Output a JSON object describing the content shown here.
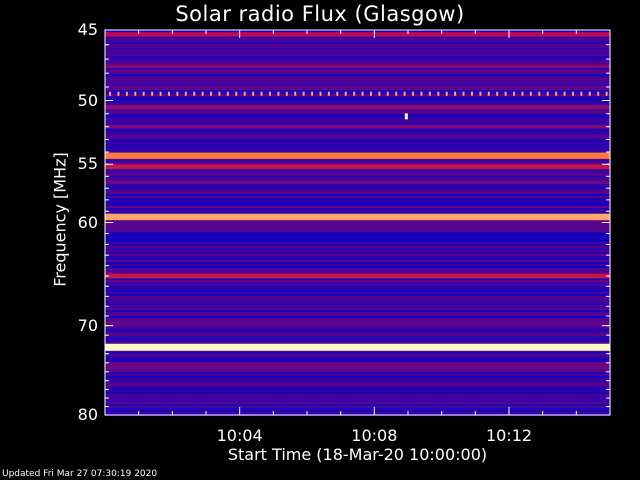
{
  "page": {
    "title": "Solar radio Flux (Glasgow)",
    "footer": "Updated Fri Mar 27 07:30:19 2020"
  },
  "chart_data": {
    "type": "heatmap",
    "title": "Solar radio Flux (Glasgow)",
    "xlabel": "Start Time (18-Mar-20 10:00:00)",
    "ylabel": "Frequency [MHz]",
    "x_unit": "minutes after 10:00:00",
    "xlim": [
      0,
      15
    ],
    "ylim": [
      45,
      80
    ],
    "y_inverted": true,
    "y_scale": "log",
    "xticks": [
      {
        "value": 4,
        "label": "10:04"
      },
      {
        "value": 8,
        "label": "10:08"
      },
      {
        "value": 12,
        "label": "10:12"
      }
    ],
    "yticks": [
      {
        "value": 45,
        "label": "45"
      },
      {
        "value": 50,
        "label": "50"
      },
      {
        "value": 55,
        "label": "55"
      },
      {
        "value": 60,
        "label": "60"
      },
      {
        "value": 70,
        "label": "70"
      },
      {
        "value": 80,
        "label": "80"
      }
    ],
    "colormap": {
      "low": "#0000cc",
      "mid": "#cc0033",
      "high": "#ffffcc"
    },
    "bands": [
      {
        "freq_mhz": 45.3,
        "intensity": 0.5
      },
      {
        "freq_mhz": 47.5,
        "intensity": 0.35
      },
      {
        "freq_mhz": 49.5,
        "intensity": 0.55,
        "pattern": "dotted"
      },
      {
        "freq_mhz": 50.5,
        "intensity": 0.4
      },
      {
        "freq_mhz": 52.0,
        "intensity": 0.35
      },
      {
        "freq_mhz": 54.3,
        "intensity": 0.85
      },
      {
        "freq_mhz": 55.2,
        "intensity": 0.55
      },
      {
        "freq_mhz": 56.5,
        "intensity": 0.3
      },
      {
        "freq_mhz": 59.5,
        "intensity": 0.9
      },
      {
        "freq_mhz": 65.0,
        "intensity": 0.55
      },
      {
        "freq_mhz": 68.0,
        "intensity": 0.2
      },
      {
        "freq_mhz": 72.3,
        "intensity": 1.0
      },
      {
        "freq_mhz": 74.5,
        "intensity": 0.3
      }
    ],
    "background_intensity": 0.15,
    "events": [
      {
        "time_min": 8.95,
        "freq_mhz": 51.2,
        "intensity": 1.0
      }
    ]
  }
}
